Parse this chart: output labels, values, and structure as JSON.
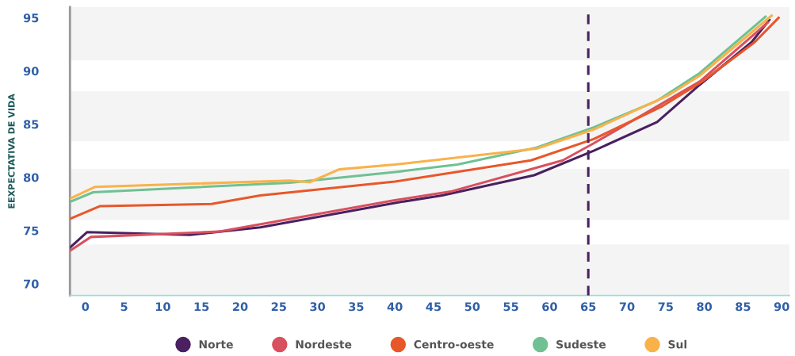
{
  "chart_data": {
    "type": "line",
    "ylabel": "EEXPECTATIVA DE VIDA",
    "xlim": [
      -2,
      91
    ],
    "xticks": [
      0,
      5,
      10,
      15,
      20,
      25,
      30,
      35,
      40,
      45,
      50,
      55,
      60,
      65,
      70,
      75,
      80,
      85,
      90
    ],
    "ylim": [
      68.9,
      96
    ],
    "yticks": [
      70,
      75,
      80,
      85,
      90,
      95
    ],
    "grid": false,
    "legend": "bottom",
    "marker": "none",
    "line_style": "solid",
    "series": [
      {
        "name": "Norte",
        "color": "#4a2060",
        "x": [
          -2,
          0.2,
          13.5,
          22.6,
          40,
          46.1,
          58,
          65.7,
          73.9,
          79.4,
          86.1,
          88.4
        ],
        "values": [
          73.4,
          74.85,
          74.6,
          75.3,
          77.6,
          78.3,
          80.2,
          82.5,
          85.2,
          88.7,
          92.7,
          94.8
        ]
      },
      {
        "name": "Nordeste",
        "color": "#d9505e",
        "x": [
          -2,
          0.7,
          17.2,
          40,
          47.4,
          61.7,
          65.7,
          79.4,
          88.2
        ],
        "values": [
          73.1,
          74.4,
          74.9,
          77.85,
          78.7,
          81.6,
          83.2,
          89.0,
          94.55
        ]
      },
      {
        "name": "Centro-oeste",
        "color": "#e8572a",
        "x": [
          -2,
          1.9,
          16.3,
          22.6,
          40,
          57.6,
          65.7,
          74.6,
          79.7,
          86.5,
          89.6
        ],
        "values": [
          76.1,
          77.3,
          77.5,
          78.3,
          79.6,
          81.6,
          83.6,
          86.7,
          89.0,
          92.7,
          95.0
        ]
      },
      {
        "name": "Sudeste",
        "color": "#6fc193",
        "x": [
          -2,
          1,
          26.4,
          40,
          48.1,
          58.3,
          65.7,
          73.9,
          79.4,
          87.9
        ],
        "values": [
          77.7,
          78.6,
          79.5,
          80.5,
          81.2,
          82.8,
          84.7,
          87.2,
          89.8,
          95.1
        ]
      },
      {
        "name": "Sul",
        "color": "#f9b24a",
        "x": [
          -2,
          1.2,
          26.4,
          29,
          32.8,
          40,
          58.3,
          65.7,
          75.3,
          79.4,
          88.7
        ],
        "values": [
          78.0,
          79.1,
          79.7,
          79.55,
          80.75,
          81.2,
          82.7,
          84.5,
          87.7,
          89.55,
          95.2
        ]
      }
    ],
    "ref_lines": [
      {
        "axis": "x",
        "value": 65,
        "color": "#4a2060",
        "line_style": "dashed"
      }
    ],
    "bands": [
      {
        "axis": "y",
        "from": 91.0,
        "to": 96,
        "color": "#f4f4f4"
      },
      {
        "axis": "y",
        "from": 83.4,
        "to": 88.1,
        "color": "#f4f4f4"
      },
      {
        "axis": "y",
        "from": 76.0,
        "to": 80.8,
        "color": "#f4f4f4"
      },
      {
        "axis": "y",
        "from": 68.9,
        "to": 73.7,
        "color": "#f4f4f4"
      }
    ]
  }
}
